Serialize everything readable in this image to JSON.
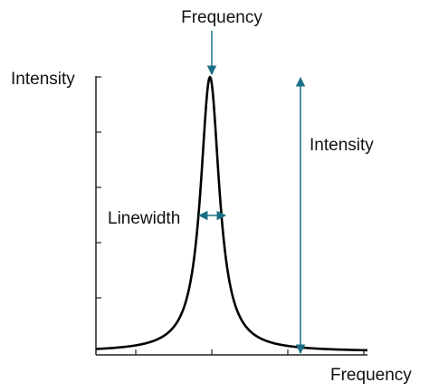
{
  "labels": {
    "peak_frequency": "Frequency",
    "y_axis": "Intensity",
    "intensity_arrow": "Intensity",
    "linewidth": "Linewidth",
    "x_axis": "Frequency"
  },
  "colors": {
    "curve": "#000000",
    "axis": "#222222",
    "arrow": "#1a6f86"
  },
  "curve": {
    "shape": "lorentzian",
    "peak_position_fraction": 0.42,
    "half_width_fraction": 0.042,
    "baseline_fraction": 0.005
  }
}
